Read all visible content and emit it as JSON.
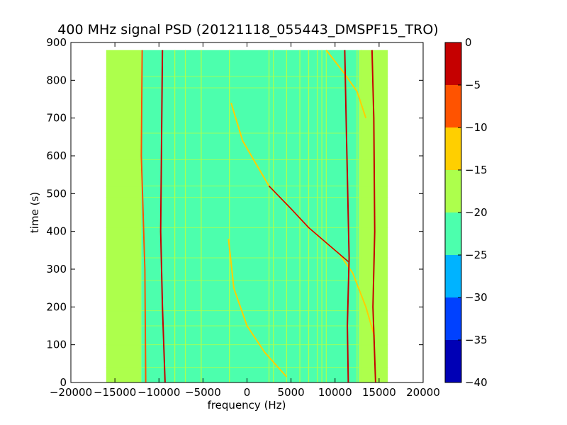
{
  "chart_data": {
    "type": "heatmap",
    "title": "400 MHz signal PSD (20121118_055443_DMSPF15_TRO)",
    "xlabel": "frequency (Hz)",
    "ylabel": "time (s)",
    "xlim": [
      -20000,
      20000
    ],
    "ylim": [
      0,
      900
    ],
    "x_ticks": [
      -20000,
      -15000,
      -10000,
      -5000,
      0,
      5000,
      10000,
      15000,
      20000
    ],
    "x_tick_labels": [
      "−20000",
      "−15000",
      "−10000",
      "−5000",
      "0",
      "5000",
      "10000",
      "15000",
      "20000"
    ],
    "y_ticks": [
      0,
      100,
      200,
      300,
      400,
      500,
      600,
      700,
      800,
      900
    ],
    "y_tick_labels": [
      "0",
      "100",
      "200",
      "300",
      "400",
      "500",
      "600",
      "700",
      "800",
      "900"
    ],
    "data_extent": {
      "freq": [
        -16000,
        16000
      ],
      "time": [
        0,
        880
      ]
    },
    "colorbar": {
      "levels": [
        -40,
        -35,
        -30,
        -25,
        -20,
        -15,
        -10,
        -5,
        0
      ],
      "tick_labels": [
        "−40",
        "−35",
        "−30",
        "−25",
        "−20",
        "−15",
        "−10",
        "−5",
        "0"
      ],
      "colors": [
        "#0000b5",
        "#0041ff",
        "#00b3ff",
        "#4cffad",
        "#adff4c",
        "#ffcf00",
        "#ff5300",
        "#c50000"
      ]
    },
    "background_bands": [
      {
        "freq": [
          -16000,
          -12000
        ],
        "level": "-20..-15"
      },
      {
        "freq": [
          -12000,
          12700
        ],
        "level": "-25..-20"
      },
      {
        "freq": [
          12700,
          16000
        ],
        "level": "-20..-15"
      }
    ],
    "vertical_carriers": [
      {
        "name": "strong-left",
        "level": "-5..0",
        "points": [
          [
            -9600,
            880
          ],
          [
            -9700,
            650
          ],
          [
            -9800,
            400
          ],
          [
            -9600,
            200
          ],
          [
            -9300,
            0
          ]
        ]
      },
      {
        "name": "strong-right-1",
        "level": "-5..0",
        "points": [
          [
            11100,
            880
          ],
          [
            11300,
            650
          ],
          [
            11600,
            330
          ],
          [
            11400,
            150
          ],
          [
            11500,
            0
          ]
        ]
      },
      {
        "name": "strong-right-2",
        "level": "-5..0",
        "points": [
          [
            14200,
            880
          ],
          [
            14400,
            700
          ],
          [
            14500,
            400
          ],
          [
            14300,
            200
          ],
          [
            14600,
            0
          ]
        ]
      },
      {
        "name": "weak-left",
        "level": "-10..-5",
        "points": [
          [
            -11900,
            880
          ],
          [
            -12000,
            600
          ],
          [
            -11600,
            300
          ],
          [
            -11500,
            0
          ]
        ]
      }
    ],
    "doppler_traces": [
      {
        "name": "upper-trace",
        "level": "-15..-10",
        "points": [
          [
            -1800,
            740
          ],
          [
            -500,
            640
          ],
          [
            1000,
            580
          ],
          [
            2500,
            520
          ],
          [
            5000,
            460
          ],
          [
            7000,
            410
          ],
          [
            9000,
            370
          ],
          [
            10500,
            340
          ],
          [
            12000,
            290
          ],
          [
            13500,
            200
          ],
          [
            14500,
            120
          ]
        ]
      },
      {
        "name": "strong-segment",
        "level": "-5..0",
        "points": [
          [
            2500,
            520
          ],
          [
            5000,
            460
          ],
          [
            7000,
            410
          ],
          [
            9000,
            370
          ],
          [
            11500,
            320
          ]
        ]
      },
      {
        "name": "lower-trace",
        "level": "-15..-10",
        "points": [
          [
            -2100,
            380
          ],
          [
            -1500,
            250
          ],
          [
            0,
            150
          ],
          [
            2000,
            80
          ],
          [
            4500,
            15
          ]
        ]
      },
      {
        "name": "top-trace",
        "level": "-15..-10",
        "points": [
          [
            9000,
            880
          ],
          [
            11000,
            820
          ],
          [
            12500,
            770
          ],
          [
            13500,
            700
          ]
        ]
      }
    ],
    "horizontal_lines_time": [
      40,
      100,
      150,
      190,
      270,
      330,
      410,
      490,
      520,
      590,
      660,
      780,
      810
    ],
    "vertical_lines_freq": [
      -8200,
      -7000,
      -5200,
      -2000,
      2500,
      3000,
      4500,
      6000,
      7000,
      8000,
      8500,
      9000,
      12500,
      13000
    ]
  }
}
